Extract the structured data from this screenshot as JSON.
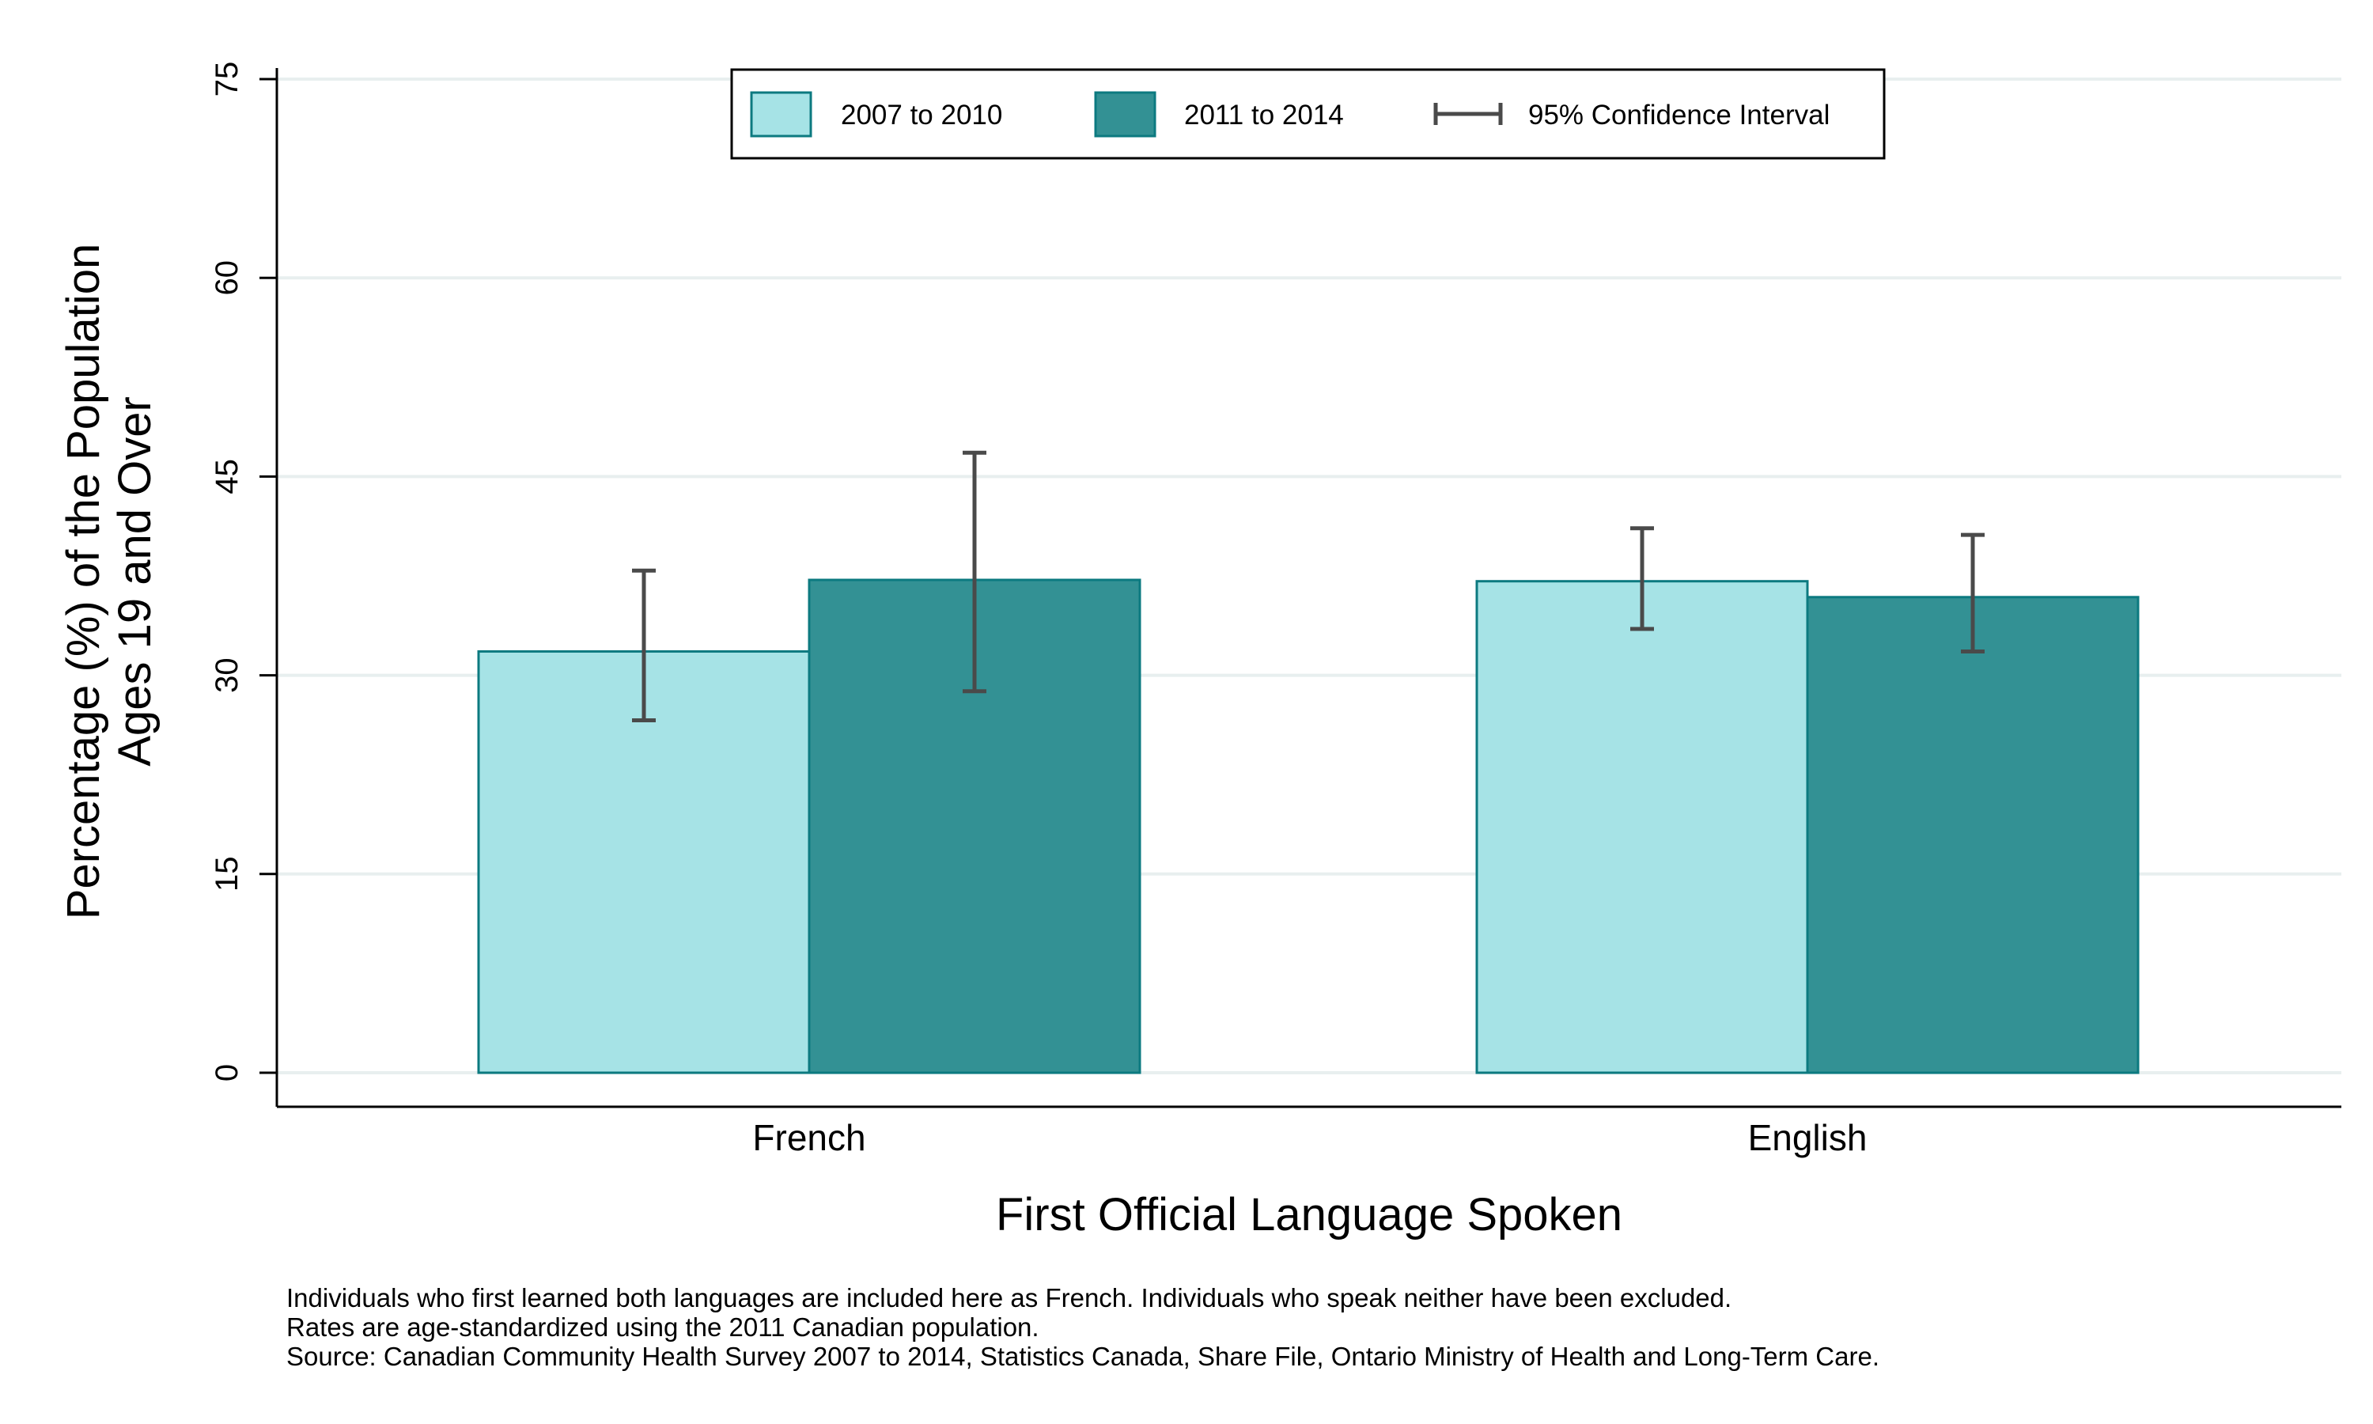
{
  "chart_data": {
    "type": "bar",
    "categories": [
      "French",
      "English"
    ],
    "series": [
      {
        "name": "2007 to 2010",
        "color": "#a6e3e6",
        "values": [
          31.8,
          37.1
        ],
        "ci_low": [
          26.6,
          33.5
        ],
        "ci_high": [
          37.9,
          41.1
        ]
      },
      {
        "name": "2011 to 2014",
        "color": "#339194",
        "values": [
          37.2,
          35.9
        ],
        "ci_low": [
          28.8,
          31.8
        ],
        "ci_high": [
          46.8,
          40.6
        ]
      }
    ],
    "ci_legend_label": "95% Confidence Interval",
    "xlabel": "First Official Language Spoken",
    "ylabel_line1": "Percentage (%) of the Population",
    "ylabel_line2": "Ages 19 and Over",
    "ylim": [
      0,
      75
    ],
    "yticks": [
      0,
      15,
      30,
      45,
      60,
      75
    ],
    "grid": true,
    "legend_position": "top-center",
    "footnotes": [
      "Individuals who first learned both languages are included here as French.  Individuals who speak neither have been excluded.",
      "Rates are age-standardized using the 2011 Canadian population.",
      "Source: Canadian Community Health Survey 2007 to 2014, Statistics Canada, Share File, Ontario Ministry of Health and Long-Term Care."
    ]
  }
}
